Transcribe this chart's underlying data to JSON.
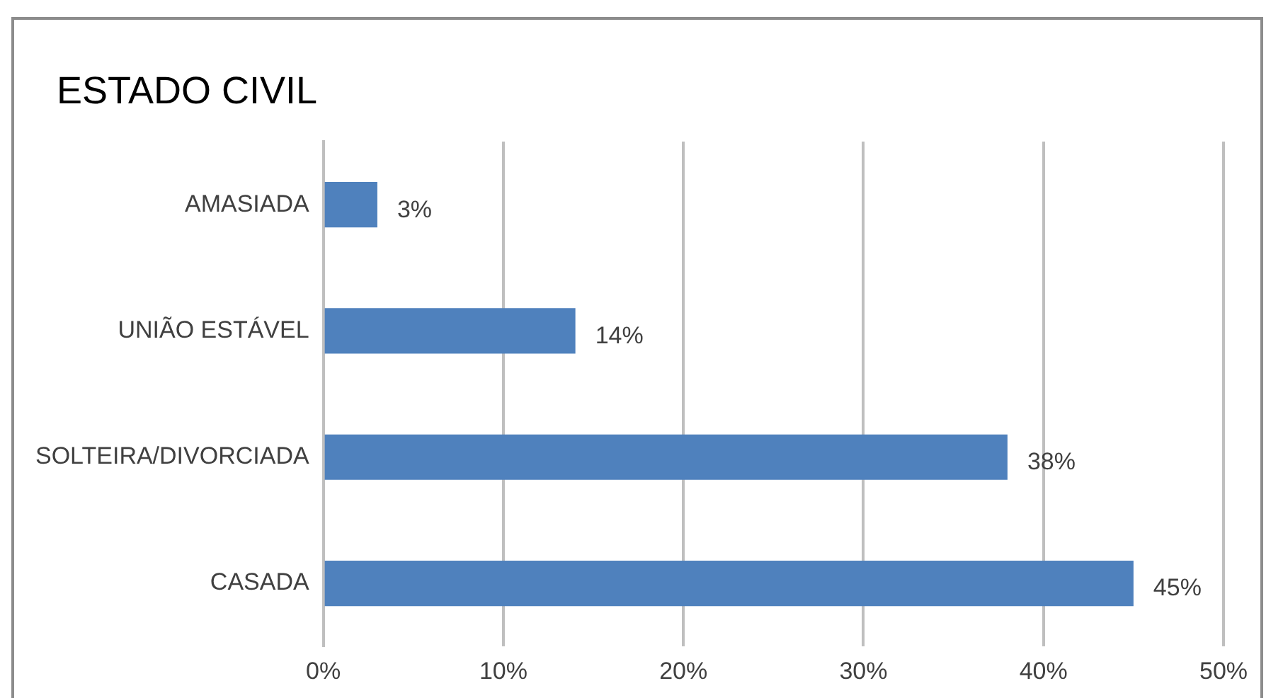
{
  "chart_data": {
    "type": "bar",
    "orientation": "horizontal",
    "title": "ESTADO CIVIL",
    "categories": [
      "AMASIADA",
      "UNIÃO ESTÁVEL",
      "SOLTEIRA/DIVORCIADA",
      "CASADA"
    ],
    "values": [
      3,
      14,
      38,
      45
    ],
    "value_labels": [
      "3%",
      "14%",
      "38%",
      "45%"
    ],
    "color": "#4f81bd",
    "xlim": [
      0,
      50
    ],
    "xticks": [
      {
        "value": 0,
        "label": "0%"
      },
      {
        "value": 10,
        "label": "10%"
      },
      {
        "value": 20,
        "label": "20%"
      },
      {
        "value": 30,
        "label": "30%"
      },
      {
        "value": 40,
        "label": "40%"
      },
      {
        "value": 50,
        "label": "50%"
      }
    ],
    "grid": "x",
    "legend": false
  }
}
